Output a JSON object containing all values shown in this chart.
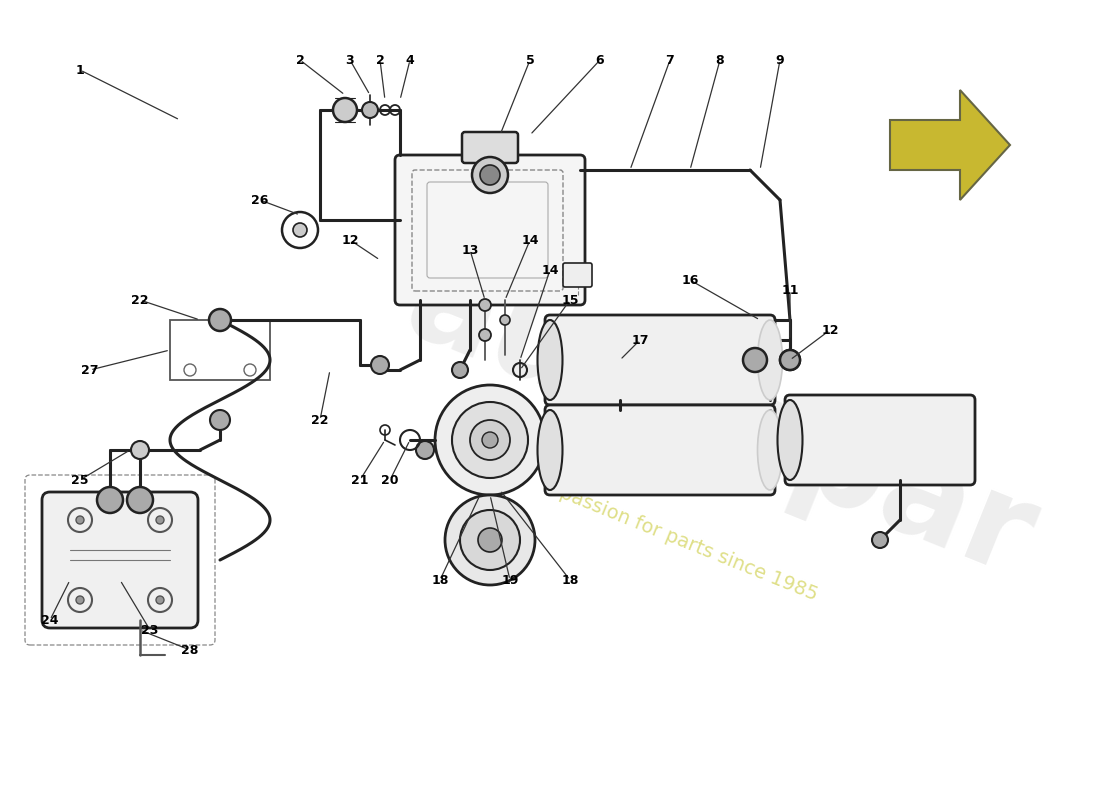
{
  "bg_color": "#ffffff",
  "line_color": "#222222",
  "arrow_fill": "#c8b830",
  "arrow_stroke": "#666644",
  "watermark_color": "#e0e0e0",
  "watermark_subcolor": "#d0d060"
}
